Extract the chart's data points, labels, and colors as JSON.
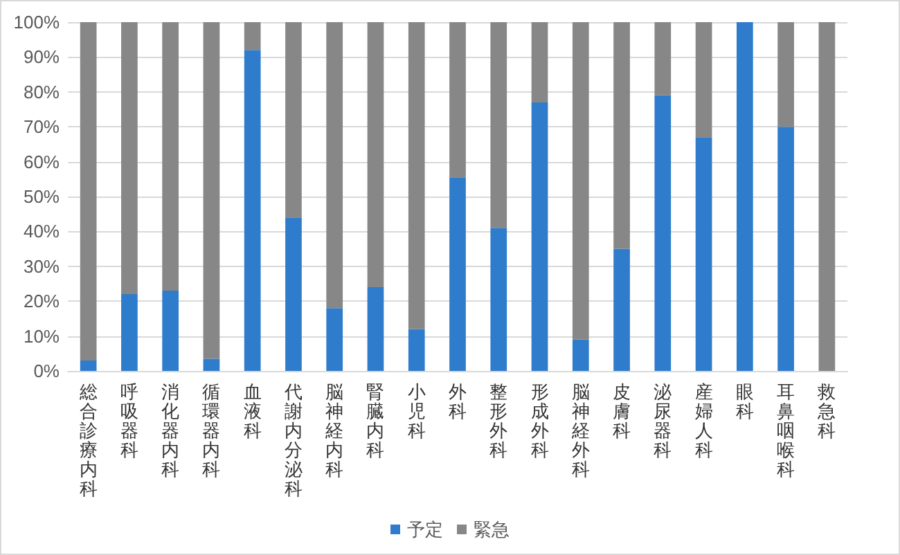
{
  "chart_data": {
    "type": "bar",
    "stacked": true,
    "categories": [
      "総合診療内科",
      "呼吸器科",
      "消化器内科",
      "循環器内科",
      "血液科",
      "代謝内分泌科",
      "脳神経内科",
      "腎臓内科",
      "小児科",
      "外科",
      "整形外科",
      "形成外科",
      "脳神経外科",
      "皮膚科",
      "泌尿器科",
      "産婦人科",
      "眼科",
      "耳鼻咽喉科",
      "救急科"
    ],
    "series": [
      {
        "name": "予定",
        "color": "#2e7ccb",
        "values": [
          3,
          22,
          23,
          3.5,
          92,
          44,
          18,
          24,
          12,
          55.5,
          41,
          77,
          9,
          35,
          79,
          67,
          100,
          70,
          0
        ]
      },
      {
        "name": "緊急",
        "color": "#878787",
        "values": [
          97,
          78,
          77,
          96.5,
          8,
          56,
          82,
          76,
          88,
          44.5,
          59,
          23,
          91,
          65,
          21,
          33,
          0,
          30,
          100
        ]
      }
    ],
    "ylim": [
      0,
      100
    ],
    "yticks": [
      {
        "value": 0,
        "label": "0%"
      },
      {
        "value": 10,
        "label": "10%"
      },
      {
        "value": 20,
        "label": "20%"
      },
      {
        "value": 30,
        "label": "30%"
      },
      {
        "value": 40,
        "label": "40%"
      },
      {
        "value": 50,
        "label": "50%"
      },
      {
        "value": 60,
        "label": "60%"
      },
      {
        "value": 70,
        "label": "70%"
      },
      {
        "value": 80,
        "label": "80%"
      },
      {
        "value": 90,
        "label": "90%"
      },
      {
        "value": 100,
        "label": "100%"
      }
    ],
    "grid": "y",
    "legend": "bottom"
  }
}
